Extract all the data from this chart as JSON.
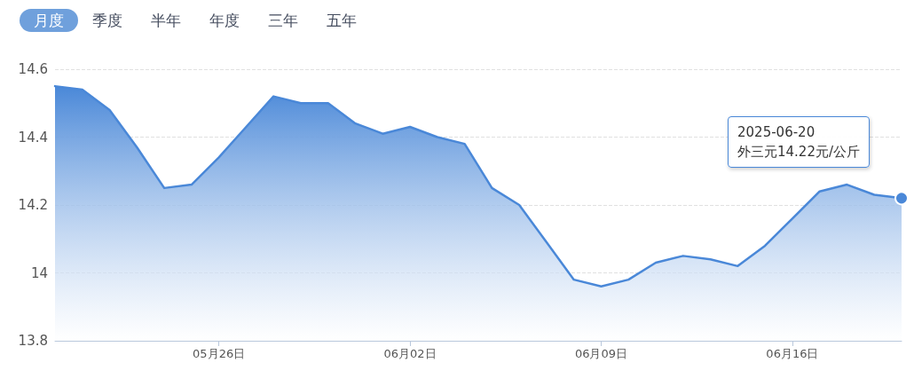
{
  "chart_data": {
    "type": "area",
    "categories": [
      null,
      null,
      null,
      null,
      null,
      null,
      "05月26日",
      null,
      null,
      null,
      null,
      null,
      null,
      "06月02日",
      null,
      null,
      null,
      null,
      null,
      null,
      "06月09日",
      null,
      null,
      null,
      null,
      null,
      null,
      "06月16日",
      null,
      null,
      null,
      null
    ],
    "series": [
      {
        "color": "#4a88d8",
        "values": [
          14.55,
          14.54,
          14.48,
          14.37,
          14.25,
          14.26,
          14.34,
          14.43,
          14.52,
          14.5,
          14.5,
          14.44,
          14.41,
          14.43,
          14.4,
          14.38,
          14.25,
          14.2,
          14.09,
          13.98,
          13.96,
          13.98,
          14.03,
          14.05,
          14.04,
          14.02,
          14.08,
          14.16,
          14.24,
          14.26,
          14.23,
          14.22
        ]
      }
    ],
    "ylim": [
      13.8,
      14.6
    ],
    "yticks": [
      13.8,
      {
        "value": 14,
        "label": "14"
      },
      14.2,
      14.4,
      14.6
    ],
    "grid": "y",
    "marker": "none",
    "line_style": "solid",
    "annotations": [
      "月度",
      "季度",
      "半年",
      "年度",
      "三年",
      "五年",
      "2025-06-20\n外三元14.22元/公斤"
    ]
  }
}
